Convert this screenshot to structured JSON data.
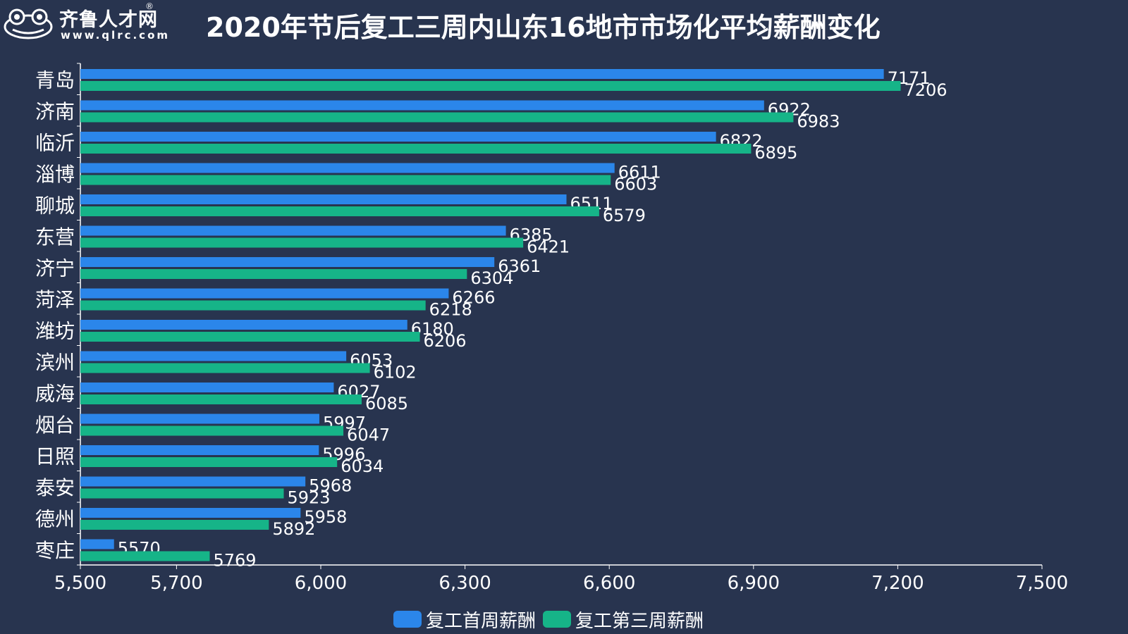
{
  "header": {
    "logo_cn": "齐鲁人才网",
    "logo_reg": "®",
    "logo_url": "www.qlrc.com",
    "title": "2020年节后复工三周内山东16地市市场化平均薪酬变化"
  },
  "chart_data": {
    "type": "bar",
    "orientation": "horizontal",
    "title": "2020年节后复工三周内山东16地市市场化平均薪酬变化",
    "xlabel": "",
    "ylabel": "",
    "xlim": [
      5500,
      7500
    ],
    "x_ticks": [
      "5,500",
      "5,700",
      "6,000",
      "6,300",
      "6,600",
      "6,900",
      "7,200",
      "7,500"
    ],
    "x_tick_values": [
      5500,
      5700,
      6000,
      6300,
      6600,
      6900,
      7200,
      7500
    ],
    "categories": [
      "青岛",
      "济南",
      "临沂",
      "淄博",
      "聊城",
      "东营",
      "济宁",
      "菏泽",
      "潍坊",
      "滨州",
      "威海",
      "烟台",
      "日照",
      "泰安",
      "德州",
      "枣庄"
    ],
    "series": [
      {
        "name": "复工首周薪酬",
        "color": "#2b86ea",
        "values": [
          7171,
          6922,
          6822,
          6611,
          6511,
          6385,
          6361,
          6266,
          6180,
          6053,
          6027,
          5997,
          5996,
          5968,
          5958,
          5570
        ]
      },
      {
        "name": "复工第三周薪酬",
        "color": "#16b488",
        "values": [
          7206,
          6983,
          6895,
          6603,
          6579,
          6421,
          6304,
          6218,
          6206,
          6102,
          6085,
          6047,
          6034,
          5923,
          5892,
          5769
        ]
      }
    ],
    "grid": false,
    "legend_position": "bottom-center"
  }
}
